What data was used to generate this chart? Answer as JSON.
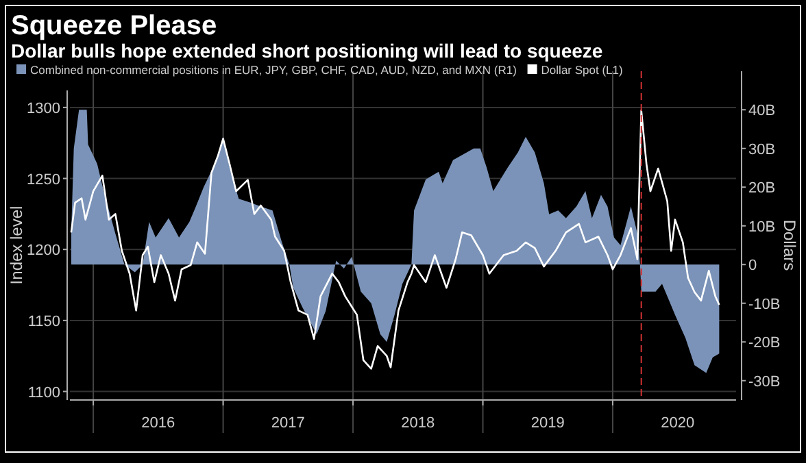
{
  "chart_data": {
    "type": "line",
    "title": "Squeeze Please",
    "subtitle": "Dollar bulls hope extended short positioning will lead to squeeze",
    "ylabel": "Index level",
    "y2label": "Dollars",
    "legend": "top",
    "grid": true,
    "xlim": [
      2015.82,
      2020.95
    ],
    "xticks": [
      {
        "value": 2016,
        "label": null
      },
      {
        "value": 2016.5,
        "label": "2016"
      },
      {
        "value": 2017,
        "label": null
      },
      {
        "value": 2017.5,
        "label": "2017"
      },
      {
        "value": 2018,
        "label": null
      },
      {
        "value": 2018.5,
        "label": "2018"
      },
      {
        "value": 2019,
        "label": null
      },
      {
        "value": 2019.5,
        "label": "2019"
      },
      {
        "value": 2020,
        "label": null
      },
      {
        "value": 2020.5,
        "label": "2020"
      }
    ],
    "ylim": [
      1094,
      1312
    ],
    "yticks": [
      1100,
      1150,
      1200,
      1250,
      1300
    ],
    "y2lim": [
      -35,
      45
    ],
    "y2ticks": [
      {
        "value": -30,
        "label": "-30B"
      },
      {
        "value": -20,
        "label": "-20B"
      },
      {
        "value": -10,
        "label": "-10B"
      },
      0,
      {
        "value": 10,
        "label": "10B"
      },
      {
        "value": 20,
        "label": "20B"
      },
      {
        "value": 30,
        "label": "30B"
      },
      {
        "value": 40,
        "label": "40B"
      }
    ],
    "ref_lines": [
      {
        "axis": "x",
        "value": 2020.22,
        "color": "#d03030",
        "line_style": "dashed"
      }
    ],
    "series": [
      {
        "name": "Combined non-commercial positions in EUR, JPY, GBP, CHF, CAD, AUD, NZD, and MXN (R1)",
        "type": "area",
        "axis": "y2",
        "color": "#7b93b8",
        "x": [
          2015.83,
          2015.85,
          2015.89,
          2015.95,
          2015.96,
          2016.03,
          2016.08,
          2016.17,
          2016.24,
          2016.32,
          2016.38,
          2016.43,
          2016.48,
          2016.58,
          2016.66,
          2016.74,
          2016.79,
          2016.85,
          2016.95,
          2017.0,
          2017.05,
          2017.12,
          2017.21,
          2017.29,
          2017.38,
          2017.45,
          2017.51,
          2017.54,
          2017.61,
          2017.72,
          2017.79,
          2017.87,
          2017.93,
          2017.99,
          2018.06,
          2018.14,
          2018.21,
          2018.26,
          2018.32,
          2018.38,
          2018.45,
          2018.47,
          2018.56,
          2018.66,
          2018.69,
          2018.77,
          2018.93,
          2018.98,
          2019.03,
          2019.08,
          2019.19,
          2019.27,
          2019.33,
          2019.4,
          2019.47,
          2019.51,
          2019.58,
          2019.64,
          2019.72,
          2019.79,
          2019.84,
          2019.91,
          2019.96,
          2020.01,
          2020.06,
          2020.14,
          2020.19,
          2020.21,
          2020.22,
          2020.33,
          2020.38,
          2020.43,
          2020.48,
          2020.56,
          2020.63,
          2020.72,
          2020.77,
          2020.82
        ],
        "values": [
          8,
          30,
          40,
          40,
          31,
          26,
          19,
          8,
          0,
          -2,
          0,
          11,
          7,
          12,
          7,
          11,
          15,
          20,
          27,
          33,
          25,
          17,
          16,
          15,
          14,
          6,
          0,
          -6,
          -11,
          -18,
          -12,
          1,
          -1,
          2,
          -7,
          -10,
          -18,
          -20,
          -13,
          -5,
          0,
          14,
          22,
          24,
          21,
          27,
          30,
          30,
          25,
          19,
          25,
          29,
          33,
          29,
          21,
          13,
          14,
          12,
          15,
          19,
          12,
          18,
          15,
          7,
          5,
          15,
          8,
          0,
          -7,
          -7,
          -5,
          -9,
          -13,
          -19,
          -26,
          -28,
          -24,
          -23
        ]
      },
      {
        "name": "Dollar Spot (L1)",
        "axis": "y",
        "color": "#ffffff",
        "x": [
          2015.83,
          2015.86,
          2015.91,
          2015.94,
          2016.0,
          2016.07,
          2016.12,
          2016.17,
          2016.22,
          2016.28,
          2016.33,
          2016.38,
          2016.42,
          2016.47,
          2016.52,
          2016.58,
          2016.63,
          2016.68,
          2016.75,
          2016.8,
          2016.86,
          2016.91,
          2016.96,
          2017.0,
          2017.05,
          2017.1,
          2017.19,
          2017.24,
          2017.29,
          2017.37,
          2017.4,
          2017.47,
          2017.52,
          2017.58,
          2017.65,
          2017.7,
          2017.75,
          2017.84,
          2017.89,
          2017.94,
          2018.03,
          2018.08,
          2018.14,
          2018.19,
          2018.26,
          2018.29,
          2018.35,
          2018.42,
          2018.45,
          2018.47,
          2018.56,
          2018.63,
          2018.72,
          2018.79,
          2018.84,
          2018.91,
          2019.0,
          2019.05,
          2019.16,
          2019.26,
          2019.33,
          2019.4,
          2019.47,
          2019.56,
          2019.64,
          2019.74,
          2019.79,
          2019.89,
          2019.96,
          2020.0,
          2020.06,
          2020.14,
          2020.19,
          2020.22,
          2020.26,
          2020.29,
          2020.35,
          2020.42,
          2020.45,
          2020.48,
          2020.54,
          2020.58,
          2020.63,
          2020.68,
          2020.74,
          2020.79,
          2020.82
        ],
        "values": [
          1212,
          1233,
          1236,
          1221,
          1241,
          1252,
          1221,
          1225,
          1199,
          1183,
          1157,
          1196,
          1202,
          1177,
          1196,
          1183,
          1164,
          1186,
          1189,
          1205,
          1197,
          1254,
          1266,
          1278,
          1260,
          1241,
          1249,
          1225,
          1231,
          1221,
          1209,
          1199,
          1177,
          1157,
          1154,
          1137,
          1167,
          1183,
          1177,
          1167,
          1154,
          1122,
          1116,
          1132,
          1125,
          1117,
          1157,
          1177,
          1183,
          1189,
          1177,
          1196,
          1173,
          1193,
          1212,
          1210,
          1196,
          1183,
          1196,
          1199,
          1205,
          1201,
          1188,
          1199,
          1212,
          1218,
          1205,
          1209,
          1196,
          1186,
          1196,
          1215,
          1193,
          1298,
          1260,
          1241,
          1257,
          1234,
          1199,
          1221,
          1205,
          1180,
          1170,
          1164,
          1185,
          1167,
          1161
        ]
      }
    ]
  }
}
